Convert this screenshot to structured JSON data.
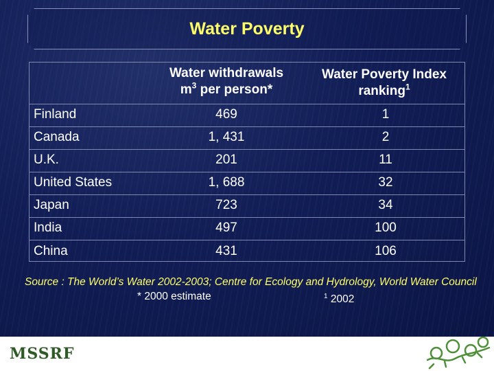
{
  "title": "Water Poverty",
  "columns": {
    "withdrawals_line1": "Water withdrawals",
    "withdrawals_line2_pre": "m",
    "withdrawals_line2_sup": "3",
    "withdrawals_line2_post": " per person*",
    "index_line1": "Water Poverty Index",
    "index_line2": "ranking",
    "index_line2_sup": "1"
  },
  "rows": [
    {
      "country": "Finland",
      "withdrawals": "469",
      "ranking": "1"
    },
    {
      "country": "Canada",
      "withdrawals": "1, 431",
      "ranking": "2"
    },
    {
      "country": "U.K.",
      "withdrawals": "201",
      "ranking": "11"
    },
    {
      "country": "United States",
      "withdrawals": "1, 688",
      "ranking": "32"
    },
    {
      "country": "Japan",
      "withdrawals": "723",
      "ranking": "34"
    },
    {
      "country": "India",
      "withdrawals": "497",
      "ranking": "100"
    },
    {
      "country": "China",
      "withdrawals": "431",
      "ranking": "106"
    }
  ],
  "source": "Source : The World’s Water 2002-2003; Centre for Ecology and Hydrology, World Water Council",
  "note_estimate": "* 2000 estimate",
  "note_year_sup": "1",
  "note_year": " 2002",
  "footer": {
    "logo": "MSSRF"
  },
  "colors": {
    "background": "#0d1b4f",
    "title": "#ffff66",
    "logo": "#2d5a25"
  }
}
